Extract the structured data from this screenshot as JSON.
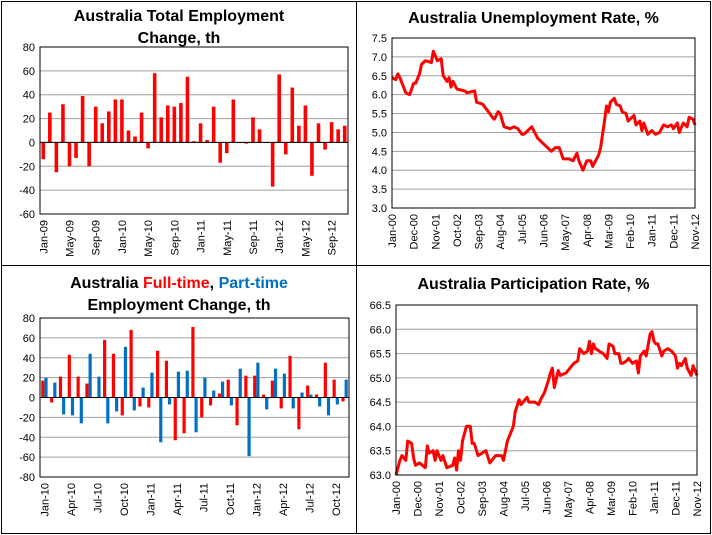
{
  "chart_data": [
    {
      "type": "bar",
      "title_line1": "Australia Total Employment",
      "title_line2": "Change, th",
      "xlabel": "",
      "ylabel": "",
      "ylim": [
        -60,
        80
      ],
      "yticks": [
        80,
        60,
        40,
        20,
        0,
        -20,
        -40,
        -60
      ],
      "grid": true,
      "tick_every": 4,
      "tick_labels": [
        "Jan-09",
        "May-09",
        "Sep-09",
        "Jan-10",
        "May-10",
        "Sep-10",
        "Jan-11",
        "May-11",
        "Sep-11",
        "Jan-12",
        "May-12",
        "Sep-12"
      ],
      "series": [
        {
          "name": "Total employment change",
          "color": "#FF0000",
          "values": [
            -14,
            25,
            -25,
            32,
            -20,
            -13,
            39,
            -20,
            30,
            16,
            26,
            36,
            36,
            10,
            5,
            25,
            -5,
            58,
            21,
            31,
            30,
            33,
            55,
            1,
            16,
            2,
            30,
            -17,
            -9,
            36,
            0,
            -1,
            21,
            11,
            0,
            -37,
            57,
            -10,
            46,
            14,
            31,
            -28,
            16,
            -6,
            17,
            11,
            14
          ]
        }
      ]
    },
    {
      "type": "line",
      "title_line1": "Australia Unemployment Rate, %",
      "xlabel": "",
      "ylabel": "",
      "x_unit": "months since Jan-00",
      "xlim": [
        0,
        154
      ],
      "ylim": [
        3.0,
        7.5
      ],
      "yticks": [
        "7.5",
        "7.0",
        "6.5",
        "6.0",
        "5.5",
        "5.0",
        "4.5",
        "4.0",
        "3.5",
        "3.0"
      ],
      "grid": true,
      "tick_labels": [
        "Jan-00",
        "Dec-00",
        "Nov-01",
        "Oct-02",
        "Sep-03",
        "Aug-04",
        "Jul-05",
        "Jun-06",
        "May-07",
        "Apr-08",
        "Mar-09",
        "Feb-10",
        "Jan-11",
        "Dec-11",
        "Nov-12"
      ],
      "series": [
        {
          "name": "Unemployment rate",
          "color": "#FF0000",
          "x": [
            0,
            2,
            3,
            4,
            7,
            9,
            11,
            12,
            14,
            15,
            17,
            20,
            21,
            23,
            25,
            26,
            28,
            29,
            30,
            31,
            33,
            37,
            38,
            42,
            43,
            46,
            49,
            51,
            52,
            54,
            55,
            57,
            60,
            62,
            64,
            66,
            67,
            69,
            71,
            74,
            76,
            78,
            81,
            83,
            85,
            87,
            90,
            92,
            94,
            95,
            97,
            99,
            101,
            102,
            105,
            106,
            108,
            109,
            110,
            111,
            113,
            114,
            116,
            117,
            119,
            120,
            122,
            123,
            124,
            126,
            127,
            128,
            130,
            132,
            134,
            136,
            138,
            140,
            142,
            143,
            145,
            146,
            148,
            150,
            151,
            153,
            154
          ],
          "y": [
            6.45,
            6.4,
            6.55,
            6.45,
            6.05,
            6.0,
            6.3,
            6.3,
            6.55,
            6.8,
            6.9,
            6.85,
            7.15,
            6.9,
            6.95,
            6.5,
            6.35,
            6.45,
            6.2,
            6.35,
            6.15,
            6.1,
            6.05,
            6.1,
            5.8,
            5.75,
            5.55,
            5.4,
            5.35,
            5.55,
            5.5,
            5.15,
            5.1,
            5.15,
            5.1,
            4.95,
            4.95,
            5.05,
            5.15,
            4.85,
            4.75,
            4.65,
            4.5,
            4.6,
            4.6,
            4.3,
            4.3,
            4.25,
            4.45,
            4.25,
            4.0,
            4.25,
            4.25,
            4.1,
            4.4,
            4.6,
            5.3,
            5.7,
            5.55,
            5.8,
            5.9,
            5.75,
            5.7,
            5.55,
            5.5,
            5.3,
            5.4,
            5.45,
            5.2,
            5.3,
            5.05,
            5.25,
            4.95,
            5.05,
            4.95,
            5.0,
            5.2,
            5.15,
            5.2,
            5.1,
            5.25,
            5.0,
            5.25,
            5.15,
            5.4,
            5.35,
            5.2
          ]
        }
      ]
    },
    {
      "type": "bar",
      "title_prefix": "Australia ",
      "title_fulltime": "Full-time",
      "title_sep": ", ",
      "title_parttime": "Part-time",
      "title_line2": "Employment Change, th",
      "xlabel": "",
      "ylabel": "",
      "ylim": [
        -80,
        80
      ],
      "yticks": [
        80,
        60,
        40,
        20,
        0,
        -20,
        -40,
        -60,
        -80
      ],
      "grid": true,
      "tick_every": 3,
      "tick_labels": [
        "Jan-10",
        "Apr-10",
        "Jul-10",
        "Oct-10",
        "Jan-11",
        "Apr-11",
        "Jul-11",
        "Oct-11",
        "Jan-12",
        "Apr-12",
        "Jul-12",
        "Oct-12"
      ],
      "series": [
        {
          "name": "Full-time",
          "color": "#FF0000",
          "values": [
            17,
            -5,
            21,
            43,
            21,
            14,
            0,
            58,
            44,
            -18,
            68,
            -9,
            -10,
            47,
            37,
            -43,
            -36,
            71,
            -20,
            -8,
            4,
            18,
            -28,
            22,
            22,
            3,
            17,
            -11,
            42,
            -32,
            12,
            3,
            35,
            18,
            -4
          ]
        },
        {
          "name": "Part-time",
          "color": "#0070C0",
          "values": [
            20,
            15,
            -17,
            -18,
            -26,
            44,
            21,
            -26,
            -14,
            51,
            -13,
            10,
            25,
            -45,
            -7,
            26,
            27,
            -35,
            20,
            7,
            16,
            -8,
            29,
            -59,
            35,
            -12,
            29,
            24,
            -11,
            5,
            3,
            -9,
            -18,
            -7,
            18
          ]
        }
      ]
    },
    {
      "type": "line",
      "title_line1": "Australia Participation Rate, %",
      "xlabel": "",
      "ylabel": "",
      "x_unit": "months since Jan-00",
      "xlim": [
        0,
        154
      ],
      "ylim": [
        63.0,
        66.5
      ],
      "yticks": [
        "66.5",
        "66.0",
        "65.5",
        "65.0",
        "64.5",
        "64.0",
        "63.5",
        "63.0"
      ],
      "grid": true,
      "tick_labels": [
        "Jan-00",
        "Dec-00",
        "Nov-01",
        "Oct-02",
        "Sep-03",
        "Aug-04",
        "Jul-05",
        "Jun-06",
        "May-07",
        "Apr-08",
        "Mar-09",
        "Feb-10",
        "Jan-11",
        "Dec-11",
        "Nov-12"
      ],
      "series": [
        {
          "name": "Participation rate",
          "color": "#FF0000",
          "x": [
            0,
            2,
            3,
            5,
            6,
            8,
            9,
            10,
            12,
            15,
            16,
            17,
            19,
            20,
            21,
            23,
            24,
            26,
            29,
            30,
            31,
            32,
            33,
            34,
            36,
            38,
            39,
            40,
            42,
            44,
            46,
            48,
            50,
            51,
            54,
            55,
            57,
            58,
            60,
            61,
            63,
            64,
            66,
            67,
            68,
            71,
            73,
            74,
            76,
            78,
            79,
            80,
            81,
            83,
            84,
            87,
            89,
            91,
            93,
            94,
            96,
            98,
            99,
            100,
            101,
            102,
            104,
            106,
            108,
            109,
            111,
            112,
            114,
            115,
            116,
            118,
            119,
            121,
            123,
            124,
            125,
            127,
            128,
            130,
            131,
            132,
            133,
            134,
            136,
            137,
            139,
            141,
            143,
            144,
            145,
            146,
            148,
            149,
            151,
            152,
            154
          ],
          "y": [
            63.0,
            63.3,
            63.4,
            63.3,
            63.7,
            63.65,
            63.35,
            63.2,
            63.25,
            63.15,
            63.6,
            63.45,
            63.5,
            63.3,
            63.5,
            63.3,
            63.4,
            63.15,
            63.2,
            63.35,
            63.1,
            63.5,
            63.3,
            63.7,
            64.0,
            64.0,
            63.65,
            63.65,
            63.4,
            63.45,
            63.5,
            63.25,
            63.35,
            63.4,
            63.4,
            63.3,
            63.7,
            63.8,
            64.0,
            64.3,
            64.55,
            64.45,
            64.55,
            64.6,
            64.5,
            64.5,
            64.45,
            64.55,
            64.7,
            64.95,
            65.1,
            65.2,
            64.8,
            65.15,
            65.05,
            65.1,
            65.2,
            65.3,
            65.35,
            65.6,
            65.5,
            65.55,
            65.75,
            65.5,
            65.7,
            65.6,
            65.55,
            65.5,
            65.4,
            65.7,
            65.65,
            65.5,
            65.5,
            65.3,
            65.3,
            65.35,
            65.4,
            65.3,
            65.35,
            65.1,
            65.45,
            65.55,
            65.45,
            65.9,
            65.95,
            65.75,
            65.7,
            65.7,
            65.45,
            65.55,
            65.6,
            65.55,
            65.45,
            65.2,
            65.3,
            65.25,
            65.4,
            65.2,
            65.05,
            65.25,
            65.05
          ]
        }
      ]
    }
  ]
}
